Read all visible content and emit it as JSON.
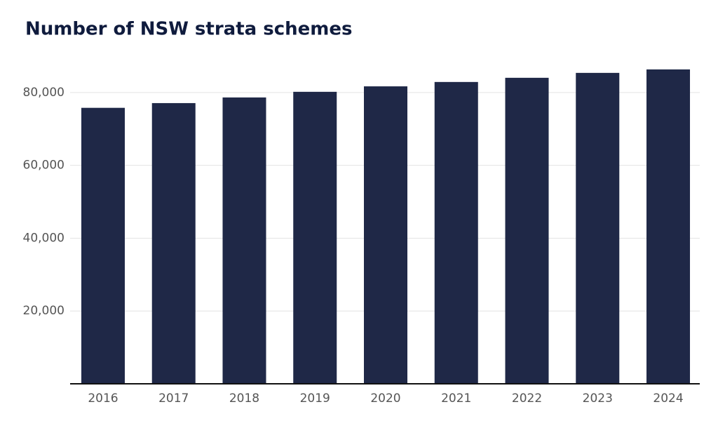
{
  "chart_data": {
    "type": "bar",
    "title": "Number of NSW strata schemes",
    "categories": [
      "2016",
      "2017",
      "2018",
      "2019",
      "2020",
      "2021",
      "2022",
      "2023",
      "2024"
    ],
    "values": [
      75800,
      77100,
      78650,
      80200,
      81700,
      82900,
      84050,
      85400,
      86350
    ],
    "color": "#1f2847",
    "ylim": [
      0,
      90000
    ],
    "yticks": [
      {
        "value": 20000,
        "label": "20,000"
      },
      {
        "value": 40000,
        "label": "40,000"
      },
      {
        "value": 60000,
        "label": "60,000"
      },
      {
        "value": 80000,
        "label": "80,000"
      }
    ],
    "grid": true
  }
}
